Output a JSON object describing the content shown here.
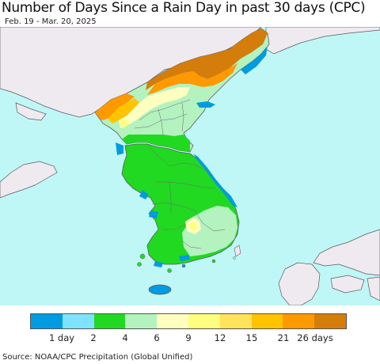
{
  "header": {
    "title": "Number of Days Since a Rain Day in past 30 days (CPC)",
    "subtitle": "Feb. 19 - Mar. 20, 2025"
  },
  "map": {
    "colors": {
      "sea": "#bff7f7",
      "land_outside": "#efeaf0",
      "border": "#5a5a5a"
    }
  },
  "legend": {
    "colors": [
      "#009be0",
      "#7fe3ff",
      "#21d921",
      "#b4f2c0",
      "#ffffc0",
      "#ffff7f",
      "#ffe35a",
      "#ffc300",
      "#ff9900",
      "#d47d0a"
    ],
    "labels": [
      "1 day",
      "2",
      "4",
      "6",
      "9",
      "12",
      "15",
      "21",
      "26 days"
    ]
  },
  "footer": {
    "source": "Source: NOAA/CPC Precipitation (Global Unified)"
  }
}
